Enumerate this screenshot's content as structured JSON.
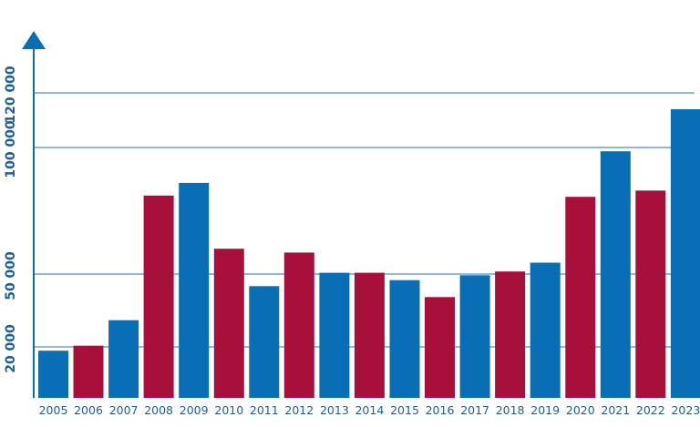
{
  "colors": {
    "blue": "#0a6eb4",
    "red": "#a8103c",
    "axis": "#0a6eb4",
    "grid": "#4a8fc6",
    "label": "#1f5f99"
  },
  "chart_data": {
    "type": "bar",
    "categories": [
      "2005",
      "2006",
      "2007",
      "2008",
      "2009",
      "2010",
      "2011",
      "2012",
      "2013",
      "2014",
      "2015",
      "2016",
      "2017",
      "2018",
      "2019",
      "2020",
      "2021",
      "2022",
      "2023"
    ],
    "values": [
      18500,
      20500,
      31000,
      81000,
      86000,
      60000,
      45000,
      58500,
      50500,
      50500,
      47500,
      40500,
      49500,
      51000,
      54500,
      80500,
      98500,
      83000,
      114000
    ],
    "bar_colors": [
      "blue",
      "red",
      "blue",
      "red",
      "blue",
      "red",
      "blue",
      "red",
      "blue",
      "red",
      "blue",
      "red",
      "blue",
      "red",
      "blue",
      "red",
      "blue",
      "red",
      "blue"
    ],
    "y_ticks": [
      {
        "value": 20000,
        "label": "20 000"
      },
      {
        "value": 50000,
        "label": "50 000"
      },
      {
        "value": 100000,
        "label": "100 000"
      },
      {
        "value": 120000,
        "label": "120 000"
      }
    ],
    "title": "",
    "xlabel": "",
    "ylabel": "",
    "legend": "none",
    "grid": true
  }
}
